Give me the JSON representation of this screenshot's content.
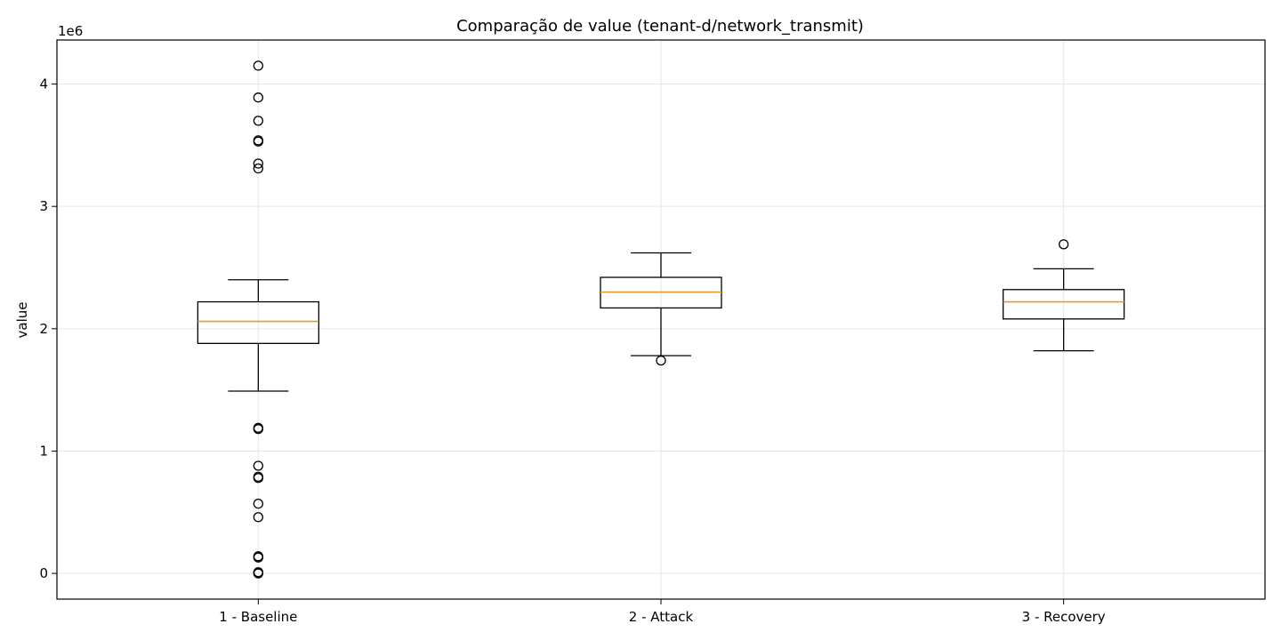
{
  "chart_data": {
    "type": "box",
    "title": "Comparação de value (tenant-d/network_transmit)",
    "xlabel": "",
    "ylabel": "value",
    "y_offset_text": "1e6",
    "ylim": [
      -210000,
      4360000
    ],
    "yticks": [
      0,
      1,
      2,
      3,
      4
    ],
    "ytick_labels": [
      "0",
      "1",
      "2",
      "3",
      "4"
    ],
    "grid": true,
    "categories": [
      "1 - Baseline",
      "2 - Attack",
      "3 - Recovery"
    ],
    "boxes": [
      {
        "name": "1 - Baseline",
        "whisker_low": 1490000,
        "q1": 1880000,
        "median": 2060000,
        "q3": 2220000,
        "whisker_high": 2400000,
        "outliers": [
          4150000,
          3890000,
          3700000,
          3540000,
          3530000,
          3350000,
          3310000,
          1190000,
          1180000,
          880000,
          790000,
          780000,
          570000,
          460000,
          140000,
          130000,
          10000,
          5000,
          0
        ]
      },
      {
        "name": "2 - Attack",
        "whisker_low": 1780000,
        "q1": 2170000,
        "median": 2300000,
        "q3": 2420000,
        "whisker_high": 2620000,
        "outliers": [
          1740000
        ]
      },
      {
        "name": "3 - Recovery",
        "whisker_low": 1820000,
        "q1": 2080000,
        "median": 2220000,
        "q3": 2320000,
        "whisker_high": 2490000,
        "outliers": [
          2690000
        ]
      }
    ],
    "colors": {
      "box": "#000000",
      "median": "#e69a28",
      "grid": "#e6e6e6",
      "outlier_face": "none"
    }
  }
}
